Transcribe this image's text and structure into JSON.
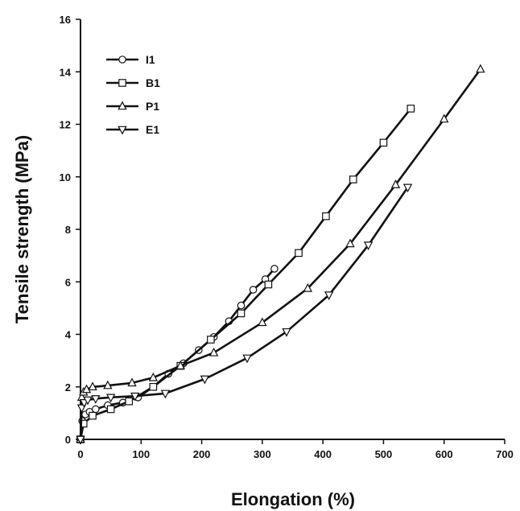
{
  "chart_data": {
    "type": "line",
    "title": "",
    "xlabel": "Elongation (%)",
    "ylabel": "Tensile strength (MPa)",
    "xlim": [
      0,
      700
    ],
    "ylim": [
      0,
      16
    ],
    "xticks": [
      "0",
      "100",
      "200",
      "300",
      "400",
      "500",
      "600",
      "700"
    ],
    "yticks": [
      "0",
      "2",
      "4",
      "6",
      "8",
      "10",
      "12",
      "14",
      "16"
    ],
    "grid": false,
    "legend_position": "top-left",
    "series": [
      {
        "name": "I1",
        "marker": "circle",
        "x": [
          0,
          3,
          8,
          15,
          25,
          45,
          70,
          95,
          120,
          145,
          170,
          195,
          220,
          245,
          265,
          285,
          305,
          320
        ],
        "y": [
          0,
          0.7,
          0.95,
          1.05,
          1.15,
          1.3,
          1.4,
          1.6,
          2.0,
          2.5,
          2.9,
          3.4,
          3.9,
          4.5,
          5.1,
          5.7,
          6.1,
          6.5
        ]
      },
      {
        "name": "B1",
        "marker": "square",
        "x": [
          0,
          5,
          20,
          50,
          80,
          120,
          165,
          215,
          265,
          310,
          360,
          405,
          450,
          500,
          545
        ],
        "y": [
          0,
          0.6,
          0.9,
          1.15,
          1.45,
          2.0,
          2.8,
          3.8,
          4.8,
          5.9,
          7.1,
          8.5,
          9.9,
          11.3,
          12.6
        ]
      },
      {
        "name": "P1",
        "marker": "triangle-up",
        "x": [
          0,
          2,
          5,
          10,
          20,
          45,
          85,
          120,
          165,
          220,
          300,
          375,
          445,
          520,
          600,
          660
        ],
        "y": [
          0,
          1.6,
          1.8,
          1.9,
          2.0,
          2.05,
          2.15,
          2.35,
          2.8,
          3.3,
          4.45,
          5.75,
          7.45,
          9.7,
          12.2,
          14.1
        ]
      },
      {
        "name": "E1",
        "marker": "triangle-down",
        "x": [
          0,
          2,
          6,
          12,
          25,
          50,
          90,
          140,
          205,
          275,
          340,
          410,
          475,
          540
        ],
        "y": [
          0,
          1.2,
          1.4,
          1.5,
          1.55,
          1.6,
          1.65,
          1.75,
          2.3,
          3.1,
          4.1,
          5.5,
          7.4,
          9.6
        ]
      }
    ]
  }
}
